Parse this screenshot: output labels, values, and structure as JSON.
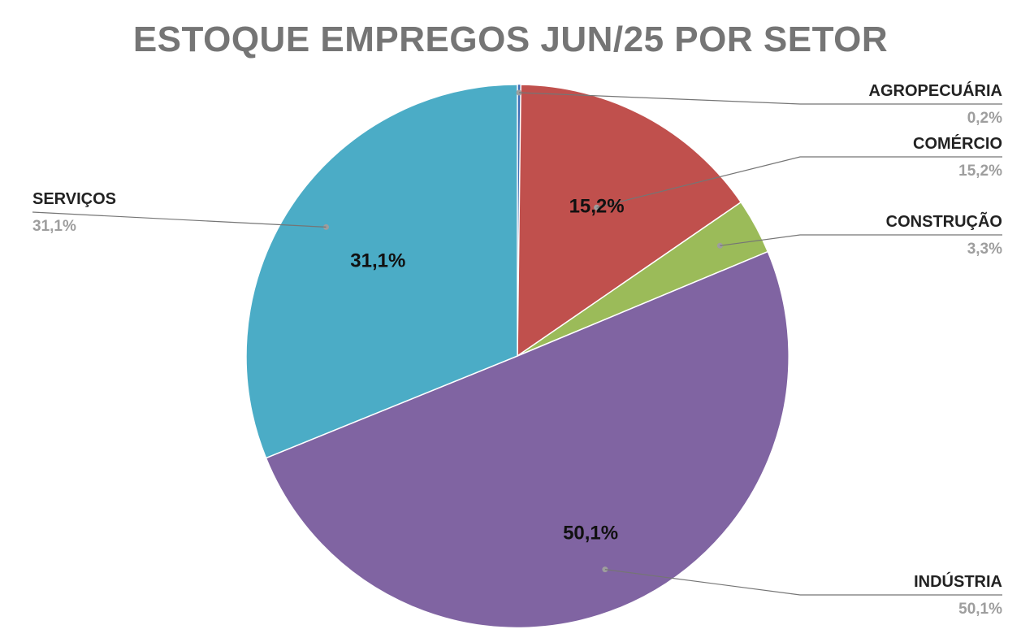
{
  "chart_data": {
    "type": "pie",
    "title": "ESTOQUE EMPREGOS JUN/25 POR SETOR",
    "slices": [
      {
        "name": "AGROPECUÁRIA",
        "value": 0.2,
        "value_label": "0,2%",
        "color": "#3f6fb6",
        "inside_label": "",
        "label_side": "right"
      },
      {
        "name": "COMÉRCIO",
        "value": 15.2,
        "value_label": "15,2%",
        "color": "#c0504d",
        "inside_label": "15,2%",
        "label_side": "right"
      },
      {
        "name": "CONSTRUÇÃO",
        "value": 3.3,
        "value_label": "3,3%",
        "color": "#9bbb59",
        "inside_label": "",
        "label_side": "right"
      },
      {
        "name": "INDÚSTRIA",
        "value": 50.1,
        "value_label": "50,1%",
        "color": "#8064a2",
        "inside_label": "50,1%",
        "label_side": "right"
      },
      {
        "name": "SERVIÇOS",
        "value": 31.1,
        "value_label": "31,1%",
        "color": "#4bacc6",
        "inside_label": "31,1%",
        "label_side": "left"
      }
    ],
    "legend": "none",
    "start": "top",
    "direction": "clockwise"
  }
}
